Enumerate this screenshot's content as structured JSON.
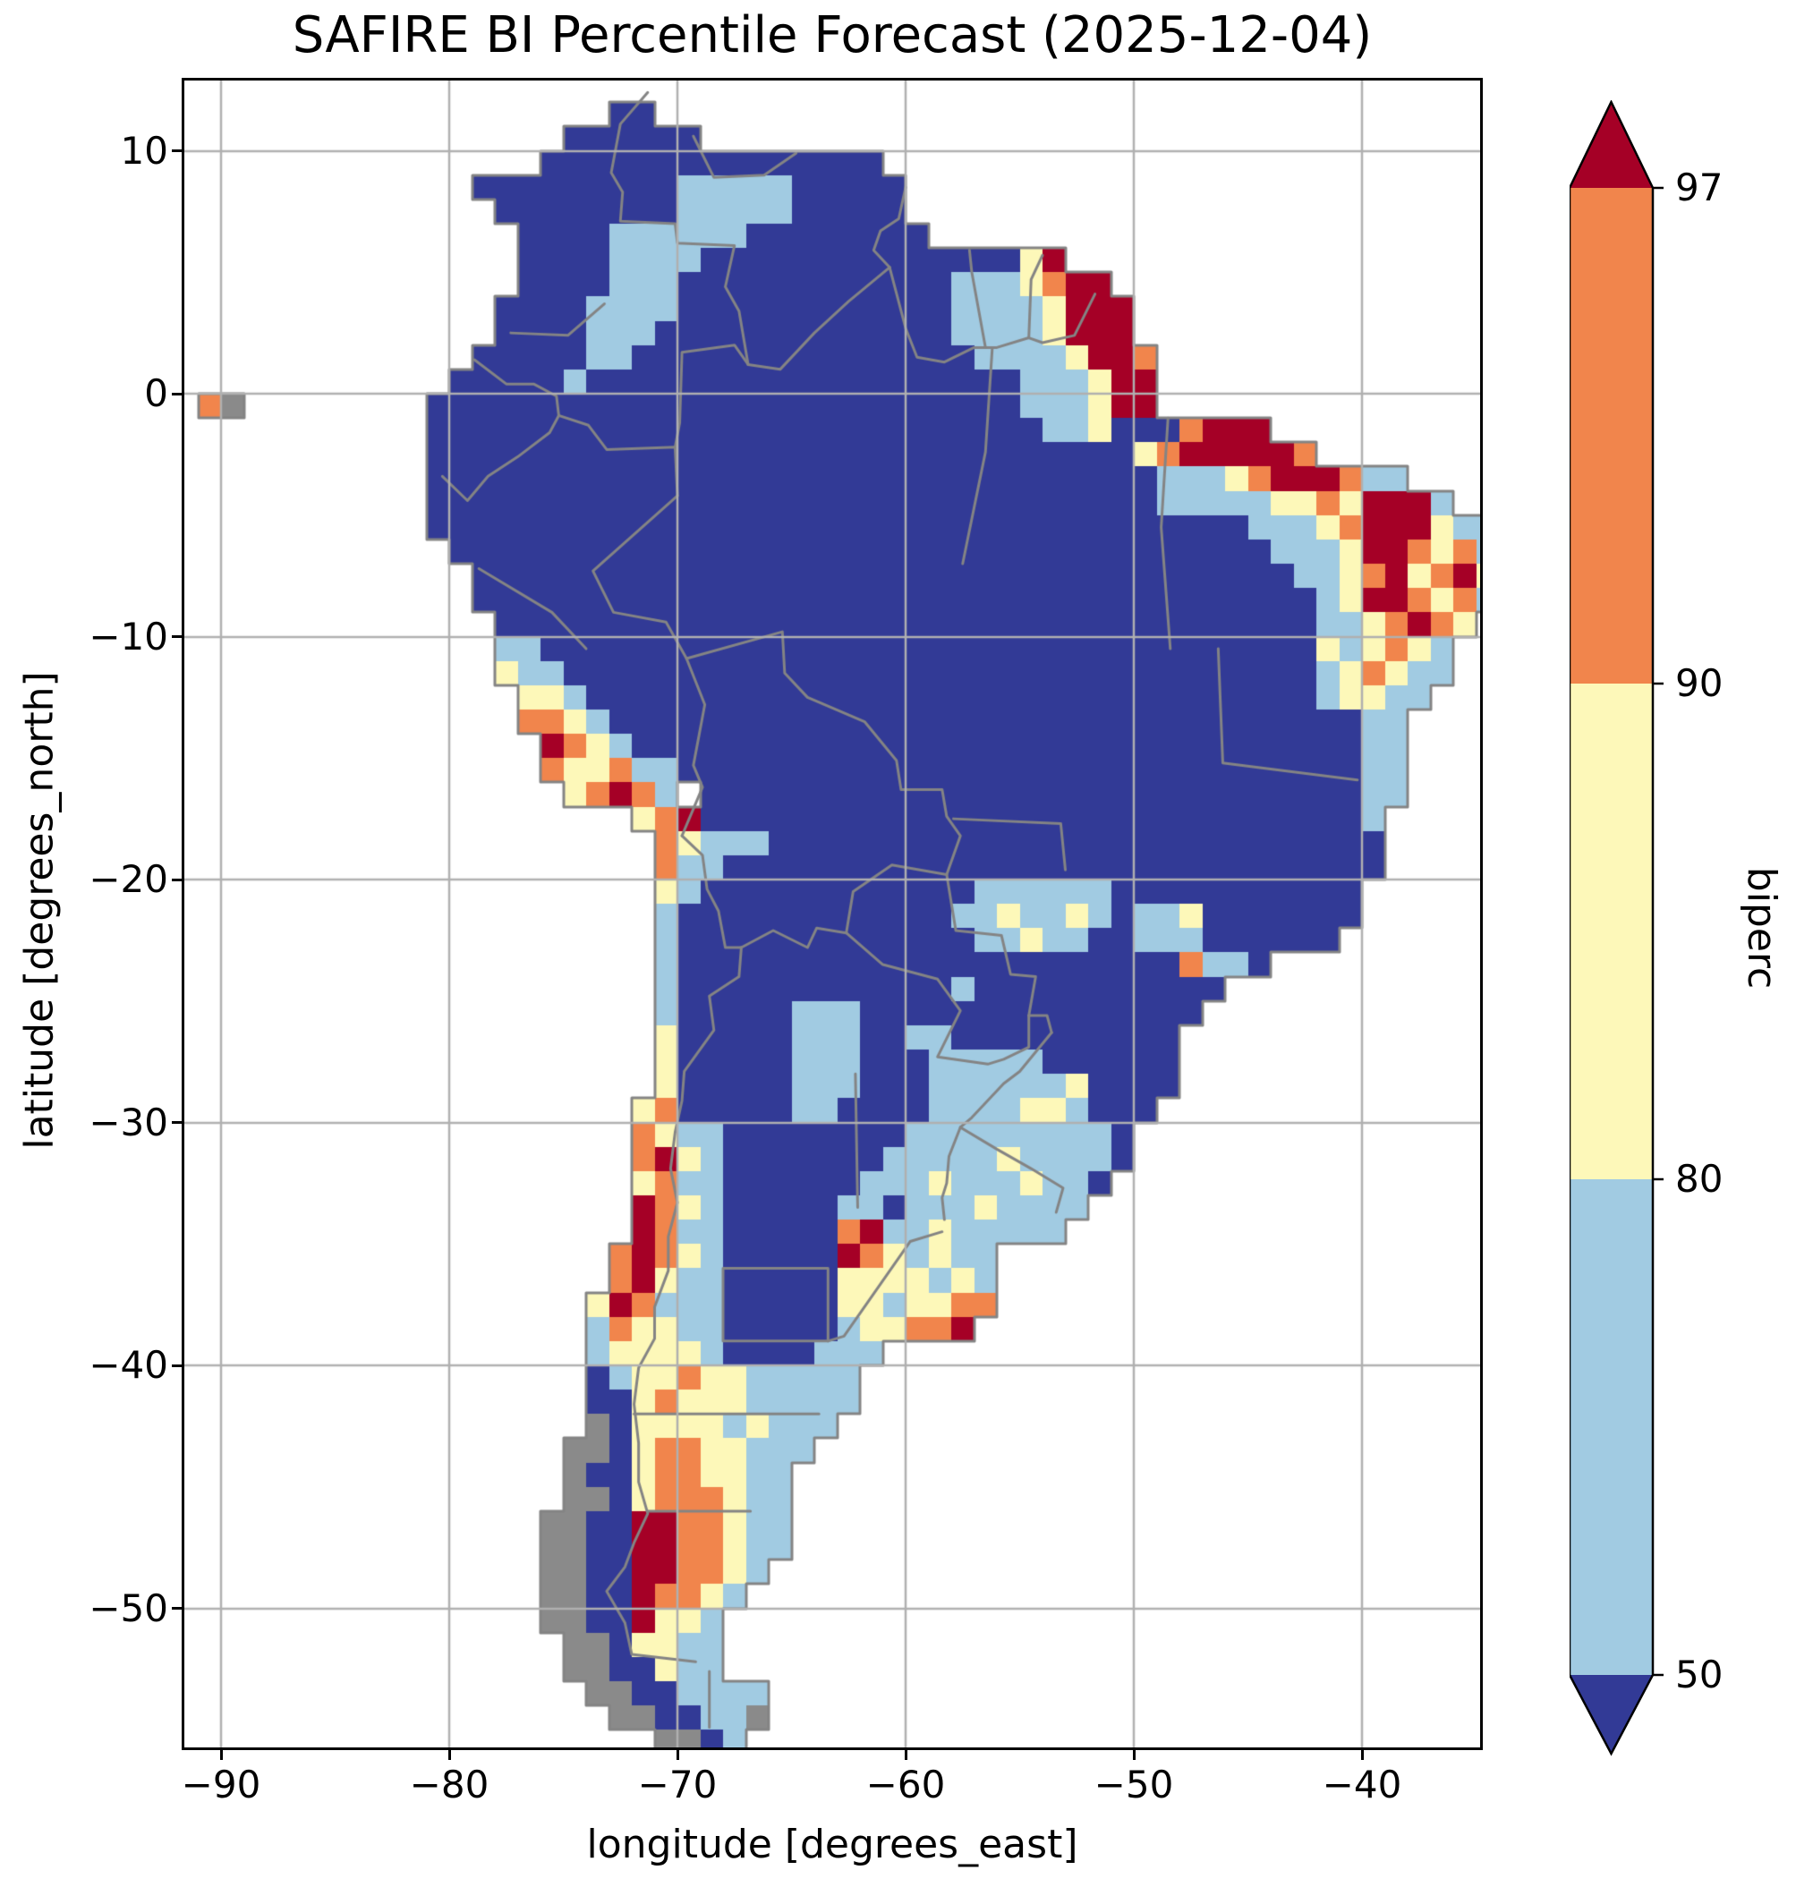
{
  "title": "SAFIRE BI Percentile Forecast (2025-12-04)",
  "axes": {
    "xlabel": "longitude [degrees_east]",
    "ylabel": "latitude [degrees_north]",
    "xticks": [
      {
        "v": -90,
        "label": "−90"
      },
      {
        "v": -80,
        "label": "−80"
      },
      {
        "v": -70,
        "label": "−70"
      },
      {
        "v": -60,
        "label": "−60"
      },
      {
        "v": -50,
        "label": "−50"
      },
      {
        "v": -40,
        "label": "−40"
      }
    ],
    "yticks": [
      {
        "v": 10,
        "label": "10"
      },
      {
        "v": 0,
        "label": "0"
      },
      {
        "v": -10,
        "label": "−10"
      },
      {
        "v": -20,
        "label": "−20"
      },
      {
        "v": -30,
        "label": "−30"
      },
      {
        "v": -40,
        "label": "−40"
      },
      {
        "v": -50,
        "label": "−50"
      }
    ],
    "grid_color": "#b0b0b0"
  },
  "colorbar": {
    "label": "biperc",
    "ticks": [
      {
        "v": 97,
        "label": "97"
      },
      {
        "v": 90,
        "label": "90"
      },
      {
        "v": 80,
        "label": "80"
      },
      {
        "v": 50,
        "label": "50"
      }
    ],
    "segment_colors_top_to_bottom": [
      "#f1854c",
      "#fdf8b9",
      "#a1cbe2"
    ],
    "over_color": "#a50026",
    "under_color": "#323a96",
    "outline_color": "#000000"
  },
  "chart_data": {
    "type": "heatmap",
    "title": "SAFIRE BI Percentile Forecast (2025-12-04)",
    "xlabel": "longitude [degrees_east]",
    "ylabel": "latitude [degrees_north]",
    "value_name": "biperc",
    "levels": [
      50,
      80,
      90,
      97
    ],
    "xlim": [
      -91.6,
      -34.8
    ],
    "ylim": [
      -55.7,
      12.9
    ],
    "grid_on": true,
    "legend": {
      "B": {
        "range": "< 50",
        "color": "#323a96"
      },
      "L": {
        "range": "50–80",
        "color": "#a1cbe2"
      },
      "Y": {
        "range": "80–90",
        "color": "#fdf8b9"
      },
      "O": {
        "range": "90–97",
        "color": "#f1854c"
      },
      "R": {
        "range": "> 97",
        "color": "#a50026"
      },
      "G": {
        "range": "land, no data (coastal/islands)",
        "color": "#8a8a8a"
      },
      ".": {
        "range": "ocean / no data",
        "color": "none"
      }
    },
    "grid_bounds": {
      "lon_min": -92,
      "lon_max": -34,
      "lat_max": 12,
      "lat_min": -56,
      "cell_deg": 1
    },
    "grid_rle_rows": [
      "19.2B37.",
      "17.6B35.",
      "16.15B27.",
      "13.9B5L5B26.",
      "14.8B5L5B26.",
      "15.4B6L8B25.",
      "15.4B4L14B1Y1R19.",
      "15.4B3L12B3L1Y1O2R17.",
      "14.4B4L12B4L1Y3R16.",
      "14.4B3L13B4L1Y3R16.",
      "13.5B2L15B4L1Y2R1O15.",
      "12.5B1L19B3L1Y2R15.",
      "1.1O1G8.26B3L1Y2R15.",
      "11.27B2L1Y3B1O3R10.",
      "11.31B1Y1O5R1O8.",
      "11.32B3L1Y1O3R1O2L4.",
      "11.32B5L2Y1O1Y3R1L2.",
      "11.36B3L1Y1O3R1Y2L",
      "12.36B3L1Y2R1O1Y1O1L",
      "13.36B2L1Y1O1R1Y1O1R1Y",
      "13.37B1L1Y2R1O1Y1O1L",
      "14.36B2L1Y1O1R1O1Y1.",
      "14.2L34B1Y1L1Y1O1Y1L2.",
      "14.1Y2L33B1L1Y1O1Y2L2.",
      "15.2Y1L32B1L2Y2L3.",
      "15.2O1Y1L33B2L4.",
      "16.1R1O1Y1L32B2L4.",
      "16.1O2Y1O2L30B2L4.",
      "17.1Y1O1R1O1L1.29B2L4.",
      "20.1Y1O1R29B1L5.",
      "21.1O1Y3L27B5.",
      "21.1O2L29B5.",
      "21.1Y1L12B6L11B6.",
      "21.1L12B2L1Y2L1Y1L1B2L1Y7B6.",
      "21.1L13B2L1Y2L2B3L6B7.",
      "21.1L22B1O2L1B10.",
      "21.1L12B1L11B12.",
      "21.1L5B3L15B13.",
      "21.1Y5B3L2B2L10B14.",
      "21.1Y5B3L3B5L6B14.",
      "21.1Y5B3L3B6L1Y4B14.",
      "20.1Y1O5B2L4B4L2Y1L3B15.",
      "20.1O1Y2L8B9L1B16.",
      "20.1O1R1Y1L7B5L1Y4L1B16.",
      "20.1Y1O2L6B3L1Y3L1Y2L1B17.",
      "20.1R1O1Y1L5B2L1B3L1Y4L18.",
      "20.1R1O2L5B1O1R2L1Y5L19.",
      "19.1O1R1O1Y1L5B1R1O1Y1L1Y2L22.",
      "19.1O1R1Y2L5B4Y1L1Y1L22.",
      "18.1Y1R1O3L5B2Y1L2Y2O22.",
      "18.1L1O2Y2L5B1L2Y2O1R23.",
      "18.1L4Y1L4B3L27.",
      "18.1B1L2Y1O2Y5L28.",
      "18.2B1Y1O3Y5L28.",
      "18.1G1B4Y1L1Y3L29.",
      "17.2G1B1Y2O2Y3L30.",
      "17.1G2B1Y2O2Y2L31.",
      "17.2G1B1Y3O1Y2L31.",
      "16.2G2B2R2O1Y2L31.",
      "16.2G2B2R2O1Y2L31.",
      "16.2G2B2R2O1Y1L32.",
      "16.2G2B1R2O1Y1L33.",
      "16.2G2B1R2Y1L34.",
      "17.2G1B2Y2L34.",
      "17.2G2B1Y2L34.",
      "18.2G2B4L32.",
      "19.2G2B2L1G32.",
      "21.2G1B1L33."
    ],
    "border_color": "#848484",
    "borders": [
      [
        [
          -71.3,
          12.4
        ],
        [
          -72.5,
          11.1
        ],
        [
          -72.9,
          9.1
        ],
        [
          -72.4,
          8.3
        ],
        [
          -72.5,
          7.1
        ],
        [
          -70.1,
          7.0
        ],
        [
          -70.0,
          6.2
        ],
        [
          -67.5,
          6.1
        ],
        [
          -67.9,
          4.4
        ],
        [
          -67.3,
          3.4
        ],
        [
          -66.9,
          1.2
        ]
      ],
      [
        [
          -78.9,
          1.4
        ],
        [
          -77.5,
          0.4
        ],
        [
          -76.3,
          0.4
        ],
        [
          -75.3,
          -0.1
        ],
        [
          -75.2,
          -0.9
        ]
      ],
      [
        [
          -75.2,
          -0.9
        ],
        [
          -73.9,
          -1.3
        ],
        [
          -73.1,
          -2.3
        ],
        [
          -70.1,
          -2.2
        ],
        [
          -70.0,
          -4.2
        ]
      ],
      [
        [
          -66.9,
          1.2
        ],
        [
          -67.5,
          2.0
        ],
        [
          -69.8,
          1.7
        ],
        [
          -69.9,
          -1.2
        ],
        [
          -70.1,
          -2.2
        ]
      ],
      [
        [
          -66.9,
          1.2
        ],
        [
          -65.5,
          1.0
        ],
        [
          -64.0,
          2.5
        ],
        [
          -62.5,
          3.8
        ],
        [
          -60.7,
          5.2
        ]
      ],
      [
        [
          -60.7,
          5.2
        ],
        [
          -61.4,
          5.9
        ],
        [
          -61.1,
          6.7
        ],
        [
          -60.3,
          7.2
        ],
        [
          -60.0,
          8.5
        ]
      ],
      [
        [
          -60.7,
          5.2
        ],
        [
          -60.0,
          2.7
        ],
        [
          -59.5,
          1.5
        ],
        [
          -58.3,
          1.3
        ],
        [
          -57.0,
          1.9
        ],
        [
          -56.0,
          1.9
        ],
        [
          -54.6,
          2.3
        ],
        [
          -54.0,
          2.1
        ],
        [
          -52.6,
          2.4
        ],
        [
          -51.7,
          4.1
        ]
      ],
      [
        [
          -57.2,
          5.9
        ],
        [
          -57.1,
          5.0
        ],
        [
          -56.5,
          1.9
        ]
      ],
      [
        [
          -54.0,
          5.7
        ],
        [
          -54.5,
          4.7
        ],
        [
          -54.6,
          2.3
        ]
      ],
      [
        [
          -80.3,
          -3.4
        ],
        [
          -79.2,
          -4.4
        ],
        [
          -78.3,
          -3.4
        ],
        [
          -77.0,
          -2.6
        ],
        [
          -75.6,
          -1.6
        ],
        [
          -75.2,
          -0.9
        ]
      ],
      [
        [
          -70.0,
          -4.2
        ],
        [
          -73.7,
          -7.3
        ],
        [
          -72.8,
          -9.0
        ],
        [
          -70.5,
          -9.4
        ],
        [
          -69.6,
          -10.9
        ]
      ],
      [
        [
          -69.6,
          -10.9
        ],
        [
          -68.8,
          -12.8
        ],
        [
          -69.3,
          -15.3
        ],
        [
          -68.9,
          -16.2
        ],
        [
          -69.8,
          -18.2
        ]
      ],
      [
        [
          -69.6,
          -10.9
        ],
        [
          -65.4,
          -9.8
        ],
        [
          -65.3,
          -11.5
        ],
        [
          -64.3,
          -12.5
        ],
        [
          -61.8,
          -13.5
        ],
        [
          -60.4,
          -15.1
        ],
        [
          -60.2,
          -16.3
        ],
        [
          -58.4,
          -16.3
        ],
        [
          -58.2,
          -17.4
        ],
        [
          -57.6,
          -18.2
        ],
        [
          -58.2,
          -19.8
        ]
      ],
      [
        [
          -58.2,
          -19.8
        ],
        [
          -60.6,
          -19.4
        ],
        [
          -62.3,
          -20.5
        ],
        [
          -62.6,
          -22.2
        ]
      ],
      [
        [
          -62.6,
          -22.2
        ],
        [
          -63.9,
          -22.0
        ],
        [
          -64.3,
          -22.8
        ],
        [
          -65.8,
          -22.1
        ],
        [
          -67.2,
          -22.8
        ]
      ],
      [
        [
          -69.8,
          -18.2
        ],
        [
          -68.9,
          -19.0
        ],
        [
          -68.7,
          -20.4
        ],
        [
          -68.2,
          -21.3
        ],
        [
          -67.9,
          -22.8
        ],
        [
          -67.2,
          -22.8
        ]
      ],
      [
        [
          -67.2,
          -22.8
        ],
        [
          -67.3,
          -24.0
        ],
        [
          -68.6,
          -24.8
        ],
        [
          -68.4,
          -26.2
        ],
        [
          -69.7,
          -27.9
        ],
        [
          -69.8,
          -29.1
        ],
        [
          -70.1,
          -30.4
        ],
        [
          -70.3,
          -31.9
        ],
        [
          -70.0,
          -33.3
        ],
        [
          -70.4,
          -34.7
        ],
        [
          -70.4,
          -36.1
        ],
        [
          -71.0,
          -37.6
        ],
        [
          -71.0,
          -38.9
        ],
        [
          -71.7,
          -40.1
        ],
        [
          -71.9,
          -41.6
        ],
        [
          -71.7,
          -43.2
        ],
        [
          -71.7,
          -44.8
        ],
        [
          -71.3,
          -46.1
        ],
        [
          -71.9,
          -47.3
        ],
        [
          -72.3,
          -48.3
        ],
        [
          -73.1,
          -49.3
        ],
        [
          -72.3,
          -50.6
        ],
        [
          -72.0,
          -51.9
        ],
        [
          -69.2,
          -52.2
        ]
      ],
      [
        [
          -68.6,
          -52.6
        ],
        [
          -68.6,
          -54.9
        ]
      ],
      [
        [
          -62.6,
          -22.2
        ],
        [
          -61.0,
          -23.5
        ],
        [
          -58.6,
          -24.1
        ],
        [
          -57.6,
          -25.4
        ],
        [
          -58.6,
          -27.3
        ],
        [
          -56.4,
          -27.6
        ],
        [
          -55.7,
          -27.4
        ],
        [
          -54.6,
          -26.9
        ],
        [
          -54.6,
          -25.6
        ]
      ],
      [
        [
          -54.6,
          -25.6
        ],
        [
          -54.3,
          -24.0
        ],
        [
          -55.4,
          -23.9
        ],
        [
          -55.8,
          -22.3
        ],
        [
          -57.8,
          -22.1
        ],
        [
          -58.2,
          -19.8
        ]
      ],
      [
        [
          -54.6,
          -25.6
        ],
        [
          -53.8,
          -25.6
        ],
        [
          -53.6,
          -26.3
        ]
      ],
      [
        [
          -53.6,
          -26.3
        ],
        [
          -55.0,
          -27.9
        ],
        [
          -55.7,
          -28.4
        ],
        [
          -57.1,
          -29.8
        ],
        [
          -57.6,
          -30.2
        ],
        [
          -58.1,
          -31.4
        ],
        [
          -58.2,
          -32.5
        ],
        [
          -58.4,
          -33.1
        ],
        [
          -58.3,
          -34.0
        ]
      ],
      [
        [
          -57.6,
          -30.2
        ],
        [
          -56.0,
          -31.1
        ],
        [
          -54.5,
          -31.9
        ],
        [
          -53.1,
          -32.7
        ],
        [
          -53.4,
          -33.7
        ]
      ],
      [
        [
          -68.0,
          -36.0
        ],
        [
          -63.4,
          -36.0
        ],
        [
          -63.4,
          -39.0
        ],
        [
          -68.0,
          -39.0
        ],
        [
          -68.0,
          -36.0
        ]
      ],
      [
        [
          -71.9,
          -42.0
        ],
        [
          -63.8,
          -42.0
        ]
      ],
      [
        [
          -71.3,
          -46.0
        ],
        [
          -66.8,
          -46.0
        ]
      ],
      [
        [
          -56.2,
          1.9
        ],
        [
          -56.5,
          -2.4
        ],
        [
          -57.5,
          -7.0
        ]
      ],
      [
        [
          -48.5,
          -1.0
        ],
        [
          -48.8,
          -5.5
        ],
        [
          -48.4,
          -10.5
        ]
      ],
      [
        [
          -46.3,
          -10.5
        ],
        [
          -46.1,
          -15.2
        ],
        [
          -40.2,
          -15.9
        ]
      ],
      [
        [
          -57.9,
          -17.5
        ],
        [
          -53.2,
          -17.7
        ],
        [
          -53.0,
          -19.6
        ]
      ],
      [
        [
          -77.3,
          2.5
        ],
        [
          -74.8,
          2.4
        ],
        [
          -73.2,
          3.7
        ]
      ],
      [
        [
          -69.3,
          10.6
        ],
        [
          -68.4,
          8.9
        ],
        [
          -66.2,
          9.0
        ],
        [
          -64.8,
          9.9
        ]
      ],
      [
        [
          -78.7,
          -7.2
        ],
        [
          -75.5,
          -9.0
        ],
        [
          -74.0,
          -10.5
        ]
      ],
      [
        [
          -62.2,
          -28.0
        ],
        [
          -62.1,
          -33.5
        ]
      ],
      [
        [
          -63.4,
          -39.0
        ],
        [
          -62.7,
          -38.8
        ],
        [
          -59.8,
          -34.9
        ],
        [
          -58.4,
          -34.5
        ]
      ]
    ]
  }
}
